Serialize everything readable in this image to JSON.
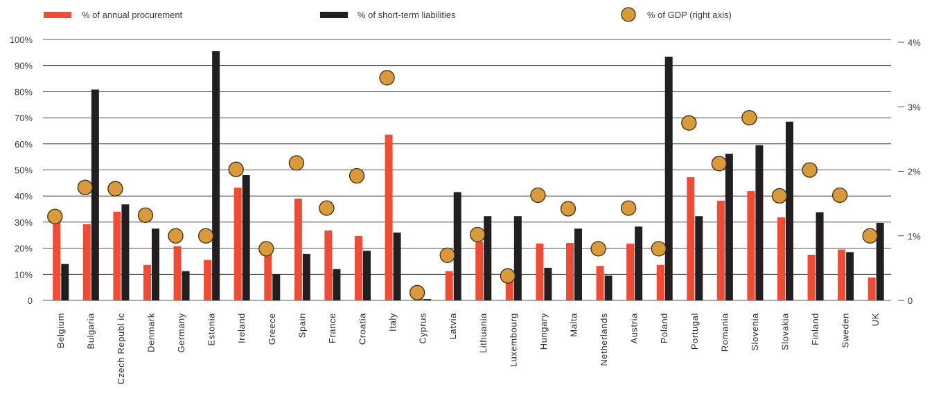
{
  "chart_data": {
    "type": "bar",
    "legend_position": "top",
    "grid": true,
    "colors": {
      "procurement": "#ef4b35",
      "liabilities": "#231f20",
      "gdp": "#d89a3a",
      "gdp_outline": "#3a2a10",
      "grid": "#1a1a1a"
    },
    "categories": [
      "Belgium",
      "Bulgaria",
      "Czech Republ ic",
      "Denmark",
      "Germany",
      "Estonia",
      "Ireland",
      "Greece",
      "Spain",
      "France",
      "Croatia",
      "Italy",
      "Cyprus",
      "Latvia",
      "Lithuania",
      "Luxembourg",
      "Hungary",
      "Malta",
      "Netherlands",
      "Austria",
      "Poland",
      "Portugal",
      "Romania",
      "Slovenia",
      "Slovakia",
      "Finland",
      "Sweden",
      "UK"
    ],
    "series": [
      {
        "name": "% of annual procurement",
        "axis": "left",
        "kind": "bar",
        "values": [
          34.5,
          29.2,
          34.0,
          13.6,
          20.8,
          15.5,
          43.2,
          18.5,
          39.0,
          26.8,
          24.7,
          63.5,
          1.5,
          11.2,
          22.5,
          11.0,
          21.8,
          22.0,
          13.2,
          21.8,
          13.6,
          47.2,
          38.2,
          41.9,
          31.8,
          17.5,
          19.5,
          8.8
        ]
      },
      {
        "name": "% of short-term liabilities",
        "axis": "left",
        "kind": "bar",
        "values": [
          14.0,
          80.8,
          36.8,
          27.5,
          11.2,
          95.5,
          48.0,
          10.0,
          17.8,
          12.0,
          19.0,
          26.0,
          0.5,
          41.5,
          32.3,
          32.3,
          12.5,
          27.5,
          9.5,
          28.3,
          93.4,
          32.3,
          56.2,
          59.5,
          68.5,
          33.8,
          18.5,
          29.7
        ]
      },
      {
        "name": "% of GDP (right axis)",
        "axis": "right",
        "kind": "marker",
        "values": [
          1.3,
          1.75,
          1.73,
          1.32,
          1.0,
          1.0,
          2.03,
          0.8,
          2.13,
          1.43,
          1.93,
          3.45,
          0.12,
          0.7,
          1.02,
          0.38,
          1.63,
          1.42,
          0.8,
          1.43,
          0.8,
          2.75,
          2.12,
          2.83,
          1.62,
          2.02,
          1.63,
          1.0
        ]
      }
    ],
    "y_left": {
      "min": 0,
      "max": 100,
      "ticks": [
        "0",
        "10%",
        "20%",
        "30%",
        "40%",
        "50%",
        "60%",
        "70%",
        "80%",
        "90%",
        "100%"
      ]
    },
    "y_right": {
      "min": 0,
      "max": 4,
      "ticks": [
        "0",
        "1%",
        "2%",
        "3%",
        "4%"
      ]
    }
  }
}
